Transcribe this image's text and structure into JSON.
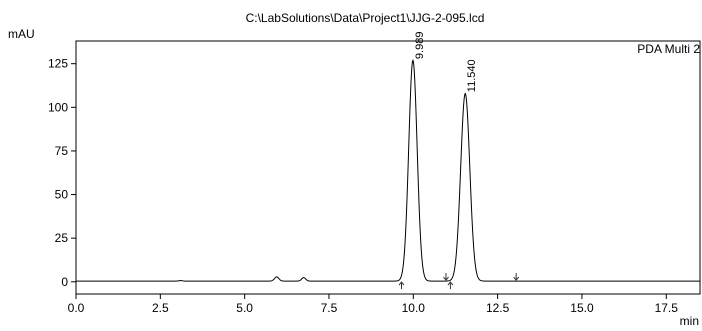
{
  "chart_data": {
    "type": "line",
    "title": "C:\\LabSolutions\\Data\\Project1\\JJG-2-095.lcd",
    "ylabel": "mAU",
    "xlabel": "min",
    "legend": "PDA Multi 2",
    "xlim": [
      0.0,
      18.5
    ],
    "ylim": [
      -7,
      138
    ],
    "x_ticks": [
      "0.0",
      "2.5",
      "5.0",
      "7.5",
      "10.0",
      "12.5",
      "15.0",
      "17.5"
    ],
    "y_ticks": [
      "0",
      "25",
      "50",
      "75",
      "100",
      "125"
    ],
    "x_tick_values": [
      0.0,
      2.5,
      5.0,
      7.5,
      10.0,
      12.5,
      15.0,
      17.5
    ],
    "y_tick_values": [
      0,
      25,
      50,
      75,
      100,
      125
    ],
    "baseline": 0.4,
    "peaks": [
      {
        "rt": 3.1,
        "height": 0.3,
        "sigma": 0.05
      },
      {
        "rt": 5.95,
        "height": 2.4,
        "sigma": 0.065
      },
      {
        "rt": 6.75,
        "height": 2.0,
        "sigma": 0.06
      },
      {
        "rt": 9.989,
        "height": 126.5,
        "sigma": 0.125,
        "label": "9.989"
      },
      {
        "rt": 11.54,
        "height": 107.5,
        "sigma": 0.135,
        "label": "11.540"
      }
    ],
    "integration_marks": [
      {
        "x": 9.65,
        "dir": "up"
      },
      {
        "x": 10.97,
        "dir": "down"
      },
      {
        "x": 11.1,
        "dir": "up"
      },
      {
        "x": 13.05,
        "dir": "down"
      }
    ]
  }
}
